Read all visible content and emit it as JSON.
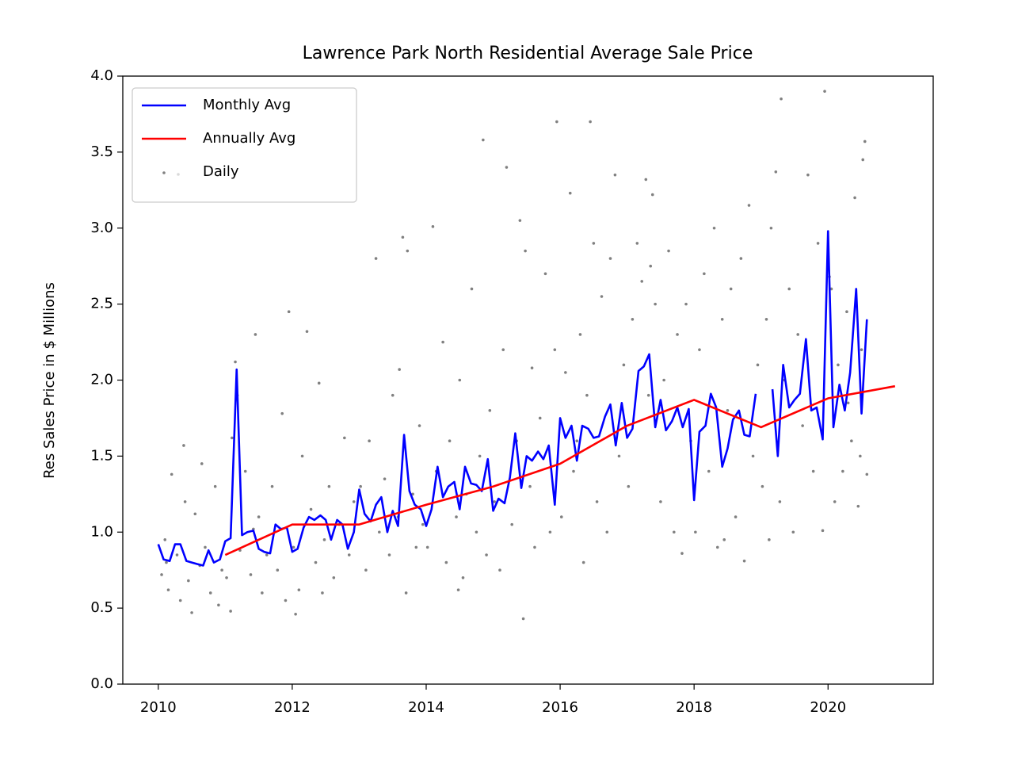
{
  "chart_data": {
    "type": "line",
    "title": "Lawrence Park North Residential Average Sale Price",
    "y_label": "Res Sales Price in $ Millions",
    "xlim": [
      2009.47,
      2021.57
    ],
    "ylim": [
      0,
      4
    ],
    "xticks": [
      2010,
      2012,
      2014,
      2016,
      2018,
      2020
    ],
    "yticks": [
      {
        "value": 0,
        "label": "0.0"
      },
      0.5,
      {
        "value": 1,
        "label": "1.0"
      },
      1.5,
      {
        "value": 2,
        "label": "2.0"
      },
      2.5,
      {
        "value": 3,
        "label": "3.0"
      },
      3.5,
      {
        "value": 4,
        "label": "4.0"
      }
    ],
    "legend": "upper left",
    "series": [
      {
        "name": "Monthly Avg",
        "color": "#0000ff",
        "kind": "line",
        "x": [
          2010,
          2010.08,
          2010.17,
          2010.25,
          2010.33,
          2010.42,
          2010.5,
          2010.58,
          2010.67,
          2010.75,
          2010.83,
          2010.92,
          2011,
          2011.08,
          2011.17,
          2011.25,
          2011.33,
          2011.42,
          2011.5,
          2011.58,
          2011.67,
          2011.75,
          2011.83,
          2011.92,
          2012,
          2012.08,
          2012.17,
          2012.25,
          2012.33,
          2012.42,
          2012.5,
          2012.58,
          2012.67,
          2012.75,
          2012.83,
          2012.92,
          2013,
          2013.08,
          2013.17,
          2013.25,
          2013.33,
          2013.42,
          2013.5,
          2013.58,
          2013.67,
          2013.75,
          2013.83,
          2013.92,
          2014,
          2014.08,
          2014.17,
          2014.25,
          2014.33,
          2014.42,
          2014.5,
          2014.58,
          2014.67,
          2014.75,
          2014.83,
          2014.92,
          2015,
          2015.08,
          2015.17,
          2015.25,
          2015.33,
          2015.42,
          2015.5,
          2015.58,
          2015.67,
          2015.75,
          2015.83,
          2015.92,
          2016,
          2016.08,
          2016.17,
          2016.25,
          2016.33,
          2016.42,
          2016.5,
          2016.58,
          2016.67,
          2016.75,
          2016.83,
          2016.92,
          2017,
          2017.08,
          2017.17,
          2017.25,
          2017.33,
          2017.42,
          2017.5,
          2017.58,
          2017.67,
          2017.75,
          2017.83,
          2017.92,
          2018,
          2018.08,
          2018.17,
          2018.25,
          2018.33,
          2018.42,
          2018.5,
          2018.58,
          2018.67,
          2018.75,
          2018.83,
          2018.92,
          2019,
          2019.08,
          2019.17,
          2019.25,
          2019.33,
          2019.42,
          2019.5,
          2019.58,
          2019.67,
          2019.75,
          2019.83,
          2019.92,
          2020,
          2020.08,
          2020.17,
          2020.25,
          2020.33,
          2020.42,
          2020.5,
          2020.58
        ],
        "values": [
          0.92,
          0.82,
          0.81,
          0.92,
          0.92,
          0.81,
          0.8,
          0.79,
          0.78,
          0.88,
          0.8,
          0.82,
          0.94,
          0.96,
          2.07,
          0.98,
          1.0,
          1.01,
          0.89,
          0.87,
          0.86,
          1.05,
          1.02,
          1.03,
          0.87,
          0.89,
          1.03,
          1.1,
          1.08,
          1.11,
          1.08,
          0.95,
          1.08,
          1.05,
          0.89,
          1.0,
          1.28,
          1.12,
          1.07,
          1.18,
          1.23,
          1.0,
          1.14,
          1.04,
          1.64,
          1.27,
          1.18,
          1.15,
          1.04,
          1.15,
          1.43,
          1.23,
          1.3,
          1.33,
          1.15,
          1.43,
          1.32,
          1.31,
          1.27,
          1.48,
          1.14,
          1.22,
          1.19,
          1.36,
          1.65,
          1.29,
          1.5,
          1.47,
          1.53,
          1.48,
          1.57,
          1.18,
          1.75,
          1.62,
          1.7,
          1.47,
          1.7,
          1.68,
          1.62,
          1.63,
          1.76,
          1.84,
          1.57,
          1.85,
          1.62,
          1.68,
          2.06,
          2.09,
          2.17,
          1.69,
          1.87,
          1.67,
          1.73,
          1.82,
          1.69,
          1.81,
          1.21,
          1.66,
          1.7,
          1.91,
          1.82,
          1.43,
          1.55,
          1.74,
          1.8,
          1.64,
          1.63,
          1.91,
          null,
          null,
          1.94,
          1.5,
          2.1,
          1.82,
          1.87,
          1.91,
          2.27,
          1.8,
          1.82,
          1.61,
          2.98,
          1.69,
          1.97,
          1.8,
          2.05,
          2.6,
          1.78,
          2.4
        ]
      },
      {
        "name": "Annually Avg",
        "color": "#ff0000",
        "kind": "line",
        "x": [
          2011,
          2012,
          2013,
          2014,
          2015,
          2016,
          2017,
          2018,
          2019,
          2020,
          2021
        ],
        "values": [
          0.85,
          1.05,
          1.05,
          1.18,
          1.3,
          1.45,
          1.7,
          1.87,
          1.69,
          1.88,
          1.96
        ]
      },
      {
        "name": "Daily",
        "color": "#808080",
        "kind": "scatter",
        "x": [
          2010.05,
          2010.1,
          2010.15,
          2010.2,
          2010.28,
          2010.33,
          2010.38,
          2010.45,
          2010.5,
          2010.55,
          2010.62,
          2010.7,
          2010.78,
          2010.85,
          2010.9,
          2010.95,
          2010.12,
          2010.4,
          2010.65,
          2011.02,
          2011.1,
          2011.15,
          2011.18,
          2011.22,
          2011.3,
          2011.38,
          2011.45,
          2011.5,
          2011.55,
          2011.62,
          2011.7,
          2011.78,
          2011.85,
          2011.9,
          2011.95,
          2011.08,
          2011.42,
          2012.02,
          2012.1,
          2012.15,
          2012.22,
          2012.28,
          2012.35,
          2012.4,
          2012.48,
          2012.55,
          2012.62,
          2012.7,
          2012.78,
          2012.85,
          2012.92,
          2012.05,
          2012.45,
          2013.02,
          2013.1,
          2013.15,
          2013.25,
          2013.3,
          2013.38,
          2013.45,
          2013.5,
          2013.58,
          2013.65,
          2013.7,
          2013.72,
          2013.8,
          2013.85,
          2013.9,
          2013.95,
          2013.6,
          2014.02,
          2014.1,
          2014.15,
          2014.25,
          2014.3,
          2014.35,
          2014.45,
          2014.5,
          2014.55,
          2014.6,
          2014.68,
          2014.75,
          2014.8,
          2014.85,
          2014.9,
          2014.95,
          2014.48,
          2015.02,
          2015.1,
          2015.15,
          2015.2,
          2015.28,
          2015.35,
          2015.4,
          2015.45,
          2015.48,
          2015.55,
          2015.62,
          2015.7,
          2015.78,
          2015.85,
          2015.92,
          2015.95,
          2015.58,
          2016.02,
          2016.08,
          2016.15,
          2016.2,
          2016.3,
          2016.35,
          2016.4,
          2016.45,
          2016.5,
          2016.55,
          2016.62,
          2016.7,
          2016.75,
          2016.82,
          2016.88,
          2016.95,
          2016.25,
          2017.02,
          2017.08,
          2017.15,
          2017.22,
          2017.28,
          2017.32,
          2017.38,
          2017.42,
          2017.5,
          2017.55,
          2017.62,
          2017.7,
          2017.75,
          2017.82,
          2017.88,
          2017.95,
          2017.35,
          2018.02,
          2018.08,
          2018.15,
          2018.22,
          2018.3,
          2018.35,
          2018.42,
          2018.5,
          2018.55,
          2018.62,
          2018.7,
          2018.75,
          2018.82,
          2018.88,
          2018.95,
          2018.45,
          2019.02,
          2019.08,
          2019.15,
          2019.22,
          2019.28,
          2019.3,
          2019.35,
          2019.42,
          2019.48,
          2019.55,
          2019.62,
          2019.7,
          2019.78,
          2019.85,
          2019.92,
          2019.95,
          2019.12,
          2020.02,
          2020.1,
          2020.15,
          2020.22,
          2020.28,
          2020.35,
          2020.4,
          2020.45,
          2020.5,
          2020.55,
          2020.58,
          2020.52,
          2020.3,
          2020.05,
          2020.48
        ],
        "values": [
          0.72,
          0.95,
          0.62,
          1.38,
          0.85,
          0.55,
          1.57,
          0.68,
          0.47,
          1.12,
          0.78,
          0.9,
          0.6,
          1.3,
          0.52,
          0.75,
          0.8,
          1.2,
          1.45,
          0.7,
          1.62,
          2.12,
          1.9,
          0.88,
          1.4,
          0.72,
          2.3,
          1.1,
          0.6,
          0.85,
          1.3,
          0.75,
          1.78,
          0.55,
          2.45,
          0.48,
          1.02,
          0.9,
          0.62,
          1.5,
          2.32,
          1.15,
          0.8,
          1.98,
          0.95,
          1.3,
          0.7,
          1.05,
          1.62,
          0.85,
          1.2,
          0.46,
          0.6,
          1.3,
          0.75,
          1.6,
          2.8,
          1.0,
          1.35,
          0.85,
          1.9,
          1.1,
          2.94,
          0.6,
          2.85,
          1.25,
          0.9,
          1.7,
          1.05,
          2.07,
          0.9,
          3.01,
          1.4,
          2.25,
          0.8,
          1.6,
          1.1,
          2.0,
          0.7,
          1.25,
          2.6,
          1.0,
          1.5,
          3.58,
          0.85,
          1.8,
          0.62,
          1.2,
          0.75,
          2.2,
          3.4,
          1.05,
          1.6,
          3.05,
          0.43,
          2.85,
          1.3,
          0.9,
          1.75,
          2.7,
          1.0,
          2.2,
          3.7,
          2.08,
          1.1,
          2.05,
          3.23,
          1.4,
          2.3,
          0.8,
          1.9,
          3.7,
          2.9,
          1.2,
          2.55,
          1.0,
          2.8,
          3.35,
          1.5,
          2.1,
          1.6,
          1.3,
          2.4,
          2.9,
          2.65,
          3.32,
          1.9,
          3.22,
          2.5,
          1.2,
          2.0,
          2.85,
          1.0,
          2.3,
          0.86,
          2.5,
          1.6,
          2.75,
          1.0,
          2.2,
          2.7,
          1.4,
          3.0,
          0.9,
          2.4,
          1.8,
          2.6,
          1.1,
          2.8,
          0.81,
          3.15,
          1.5,
          2.1,
          0.95,
          1.3,
          2.4,
          3.0,
          3.37,
          1.2,
          3.85,
          2.0,
          2.6,
          1.0,
          2.3,
          1.7,
          3.35,
          1.4,
          2.9,
          1.01,
          3.9,
          0.95,
          2.68,
          1.2,
          2.1,
          1.4,
          2.45,
          1.6,
          3.2,
          1.17,
          2.2,
          3.57,
          1.38,
          3.45,
          1.85,
          2.6,
          1.5
        ]
      }
    ]
  }
}
